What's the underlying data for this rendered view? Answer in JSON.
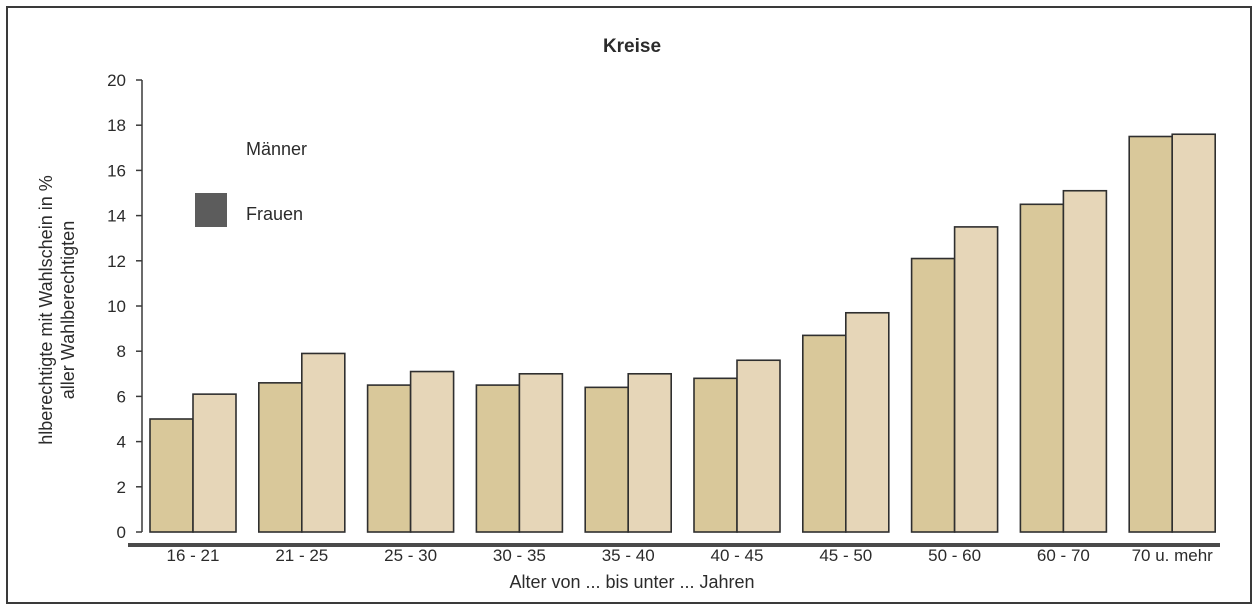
{
  "chart_data": {
    "type": "bar",
    "title": "Kreise",
    "xlabel": "Alter von ... bis unter ... Jahren",
    "ylabel_line1": "hlberechtigte mit Wahlschein in %",
    "ylabel_line2": "aller Wahlberechtigten",
    "ylim": [
      0,
      20
    ],
    "yticks": [
      "0",
      "2",
      "4",
      "6",
      "8",
      "10",
      "12",
      "14",
      "16",
      "18",
      "20"
    ],
    "grid": false,
    "legend_position": "top-left",
    "categories": [
      "16 - 21",
      "21 - 25",
      "25 - 30",
      "30 - 35",
      "35 - 40",
      "40 - 45",
      "45 - 50",
      "50 - 60",
      "60 - 70",
      "70 u. mehr"
    ],
    "series": [
      {
        "name": "Männer",
        "color": "#d9c89a",
        "values": [
          5.0,
          6.6,
          6.5,
          6.5,
          6.4,
          6.8,
          8.7,
          12.1,
          14.5,
          17.5
        ]
      },
      {
        "name": "Frauen",
        "color": "#e6d6b8",
        "values": [
          6.1,
          7.9,
          7.1,
          7.0,
          7.0,
          7.6,
          9.7,
          13.5,
          15.1,
          17.6
        ]
      }
    ]
  }
}
